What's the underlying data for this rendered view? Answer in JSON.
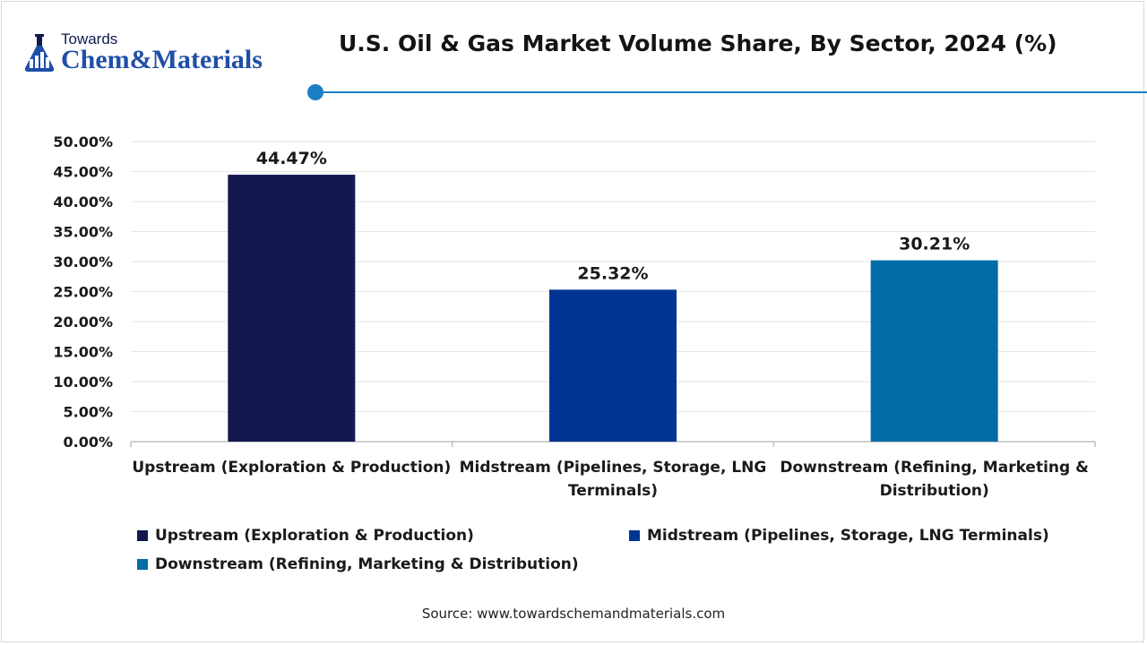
{
  "logo": {
    "line1": "Towards",
    "brand_a": "Chem",
    "brand_amp": "&",
    "brand_b": "Materials"
  },
  "colors": {
    "upstream": "#141850",
    "midstream": "#003593",
    "downstream": "#006ca8",
    "accent": "#1b7fc4"
  },
  "chart_data": {
    "type": "bar",
    "title": "U.S. Oil & Gas Market Volume Share, By Sector, 2024 (%)",
    "categories": [
      [
        "Upstream (Exploration & Production)"
      ],
      [
        "Midstream (Pipelines, Storage, LNG",
        "Terminals)"
      ],
      [
        "Downstream (Refining, Marketing &",
        "Distribution)"
      ]
    ],
    "values": [
      44.47,
      25.32,
      30.21
    ],
    "value_labels": [
      "44.47%",
      "25.32%",
      "30.21%"
    ],
    "bar_colors": [
      "#141850",
      "#003593",
      "#006ca8"
    ],
    "ylim": [
      0,
      50
    ],
    "yticks": [
      0,
      5,
      10,
      15,
      20,
      25,
      30,
      35,
      40,
      45,
      50
    ],
    "ytick_labels": [
      "0.00%",
      "5.00%",
      "10.00%",
      "15.00%",
      "20.00%",
      "25.00%",
      "30.00%",
      "35.00%",
      "40.00%",
      "45.00%",
      "50.00%"
    ],
    "grid": true,
    "legend": {
      "placement": "bottom",
      "entries": [
        {
          "label": "Upstream (Exploration & Production)",
          "color": "#141850"
        },
        {
          "label": "Midstream (Pipelines, Storage, LNG Terminals)",
          "color": "#003593"
        },
        {
          "label": "Downstream (Refining, Marketing & Distribution)",
          "color": "#006ca8"
        }
      ]
    }
  },
  "source": "Source: www.towardschemandmaterials.com"
}
